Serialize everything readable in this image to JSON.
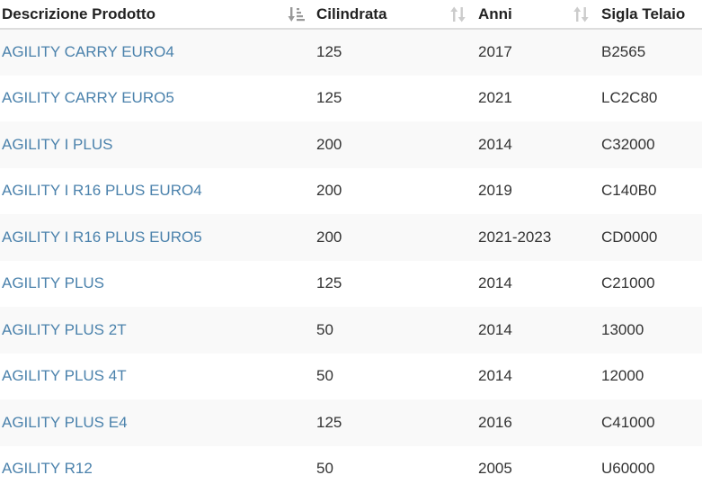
{
  "table": {
    "headers": [
      {
        "label": "Descrizione Prodotto",
        "sort": "active-asc"
      },
      {
        "label": "Cilindrata",
        "sort": "unsorted"
      },
      {
        "label": "Anni",
        "sort": "unsorted"
      },
      {
        "label": "Sigla Telaio",
        "sort": "none"
      }
    ],
    "rows": [
      {
        "descrizione": "AGILITY CARRY EURO4",
        "cilindrata": "125",
        "anni": "2017",
        "telaio": "B2565"
      },
      {
        "descrizione": "AGILITY CARRY EURO5",
        "cilindrata": "125",
        "anni": "2021",
        "telaio": "LC2C80"
      },
      {
        "descrizione": "AGILITY I PLUS",
        "cilindrata": "200",
        "anni": "2014",
        "telaio": "C32000"
      },
      {
        "descrizione": "AGILITY I R16 PLUS EURO4",
        "cilindrata": "200",
        "anni": "2019",
        "telaio": "C140B0"
      },
      {
        "descrizione": "AGILITY I R16 PLUS EURO5",
        "cilindrata": "200",
        "anni": "2021-2023",
        "telaio": "CD0000"
      },
      {
        "descrizione": "AGILITY PLUS",
        "cilindrata": "125",
        "anni": "2014",
        "telaio": "C21000"
      },
      {
        "descrizione": "AGILITY PLUS 2T",
        "cilindrata": "50",
        "anni": "2014",
        "telaio": "13000"
      },
      {
        "descrizione": "AGILITY PLUS 4T",
        "cilindrata": "50",
        "anni": "2014",
        "telaio": "12000"
      },
      {
        "descrizione": "AGILITY PLUS E4",
        "cilindrata": "125",
        "anni": "2016",
        "telaio": "C41000"
      },
      {
        "descrizione": "AGILITY R12",
        "cilindrata": "50",
        "anni": "2005",
        "telaio": "U60000"
      }
    ]
  },
  "colors": {
    "link": "#4b82ac",
    "text": "#333333",
    "stripe": "#f9f9f9",
    "sort_active": "#999999",
    "sort_inactive": "#cccccc"
  },
  "icons": {
    "sort_active": "sort-amount-down-icon",
    "sort_unsorted": "sort-both-icon"
  }
}
